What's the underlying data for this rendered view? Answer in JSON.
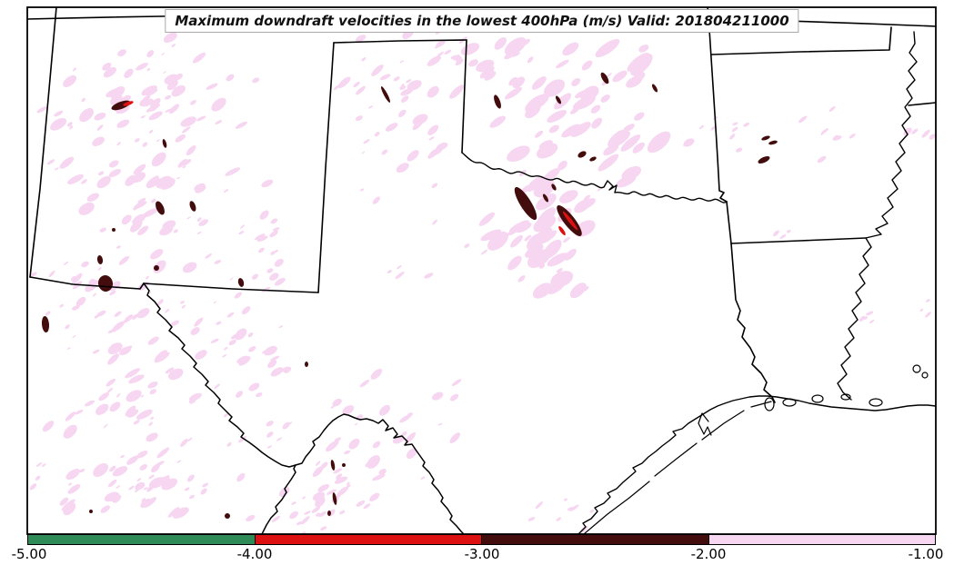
{
  "title": {
    "text": "Maximum downdraft velocities in the lowest 400hPa (m/s) Valid: 201804211000"
  },
  "chart_data": {
    "type": "heatmap",
    "title": "Maximum downdraft velocities in the lowest 400hPa (m/s)",
    "valid": "201804211000",
    "units": "m/s",
    "value_range": [
      -5.0,
      -1.0
    ],
    "colorbar": {
      "orientation": "horizontal",
      "ticks": [
        "-5.00",
        "-4.00",
        "-3.00",
        "-2.00",
        "-1.00"
      ],
      "segments": [
        {
          "from": -5.0,
          "to": -4.0,
          "color": "#2e8b57",
          "name": "green"
        },
        {
          "from": -4.0,
          "to": -3.0,
          "color": "#dd1111",
          "name": "red"
        },
        {
          "from": -3.0,
          "to": -2.0,
          "color": "#430d0d",
          "name": "maroon"
        },
        {
          "from": -2.0,
          "to": -1.0,
          "color": "#f6d6f1",
          "name": "pink"
        }
      ]
    },
    "notes": "Filled contour speckles over NM, TX panhandle, OK and the Red River valley; light pink = -2 to -1 m/s, dark maroon = -3 to -2 m/s, red = -4 to -3 m/s"
  },
  "map": {
    "visible_states": [
      "Colorado",
      "Kansas",
      "Missouri",
      "New Mexico",
      "Texas",
      "Oklahoma",
      "Arkansas",
      "Louisiana"
    ],
    "border_color": "#000000",
    "streak_angle": -35,
    "pink_clusters": [
      [
        160,
        200,
        120,
        130,
        85,
        2,
        10
      ],
      [
        180,
        95,
        110,
        65,
        38,
        2,
        9
      ],
      [
        120,
        330,
        95,
        55,
        30,
        2,
        9
      ],
      [
        440,
        115,
        85,
        85,
        30,
        2,
        9
      ],
      [
        640,
        135,
        105,
        105,
        55,
        3,
        16
      ],
      [
        800,
        150,
        55,
        38,
        10,
        2,
        7
      ],
      [
        610,
        255,
        95,
        75,
        45,
        3,
        14
      ],
      [
        150,
        430,
        120,
        105,
        55,
        2,
        10
      ],
      [
        280,
        395,
        75,
        85,
        28,
        2,
        8
      ],
      [
        150,
        540,
        130,
        48,
        45,
        2,
        10
      ],
      [
        400,
        480,
        140,
        85,
        30,
        2,
        8
      ],
      [
        380,
        530,
        45,
        55,
        25,
        2,
        9
      ],
      [
        345,
        558,
        85,
        32,
        18,
        2,
        8
      ],
      [
        905,
        140,
        42,
        38,
        8,
        2,
        6
      ],
      [
        285,
        255,
        60,
        90,
        20,
        2,
        7
      ],
      [
        520,
        60,
        85,
        50,
        24,
        3,
        11
      ],
      [
        1012,
        148,
        18,
        14,
        4,
        2,
        6
      ],
      [
        955,
        350,
        18,
        12,
        4,
        2,
        6
      ],
      [
        1016,
        342,
        14,
        12,
        3,
        2,
        5
      ],
      [
        865,
        257,
        14,
        10,
        3,
        2,
        5
      ],
      [
        450,
        210,
        70,
        110,
        16,
        2,
        8
      ],
      [
        605,
        565,
        55,
        20,
        8,
        2,
        6
      ]
    ],
    "maroon_spots": [
      [
        133,
        116,
        11,
        4,
        -20
      ],
      [
        181,
        158,
        2,
        5,
        -15
      ],
      [
        176,
        229,
        4,
        8,
        -25
      ],
      [
        212,
        227,
        3,
        6,
        -20
      ],
      [
        125,
        253,
        2,
        2,
        0
      ],
      [
        110,
        286,
        3,
        5,
        -10
      ],
      [
        116,
        312,
        8,
        9,
        -10
      ],
      [
        50,
        357,
        4,
        9,
        -5
      ],
      [
        172,
        295,
        3,
        3,
        -20
      ],
      [
        265,
        311,
        3,
        5,
        -15
      ],
      [
        337,
        401,
        2,
        3,
        0
      ],
      [
        250,
        568,
        3,
        3,
        0
      ],
      [
        100,
        563,
        2,
        2,
        0
      ],
      [
        424,
        104,
        2,
        10,
        -28
      ],
      [
        547,
        112,
        3,
        8,
        -20
      ],
      [
        578,
        224,
        6,
        21,
        -32
      ],
      [
        626,
        243,
        6,
        21,
        -38
      ],
      [
        640,
        170,
        5,
        3,
        -30
      ],
      [
        652,
        175,
        4,
        2,
        -25
      ],
      [
        609,
        206,
        2,
        4,
        -30
      ],
      [
        665,
        86,
        3,
        7,
        -30
      ],
      [
        614,
        110,
        2,
        5,
        -30
      ],
      [
        720,
        97,
        2,
        5,
        -30
      ],
      [
        840,
        176,
        7,
        3,
        -25
      ],
      [
        842,
        152,
        5,
        2,
        -20
      ],
      [
        850,
        157,
        5,
        2,
        -15
      ],
      [
        600,
        218,
        2,
        5,
        -30
      ],
      [
        366,
        512,
        2,
        6,
        -10
      ],
      [
        368,
        549,
        2,
        7,
        -10
      ],
      [
        362,
        565,
        2,
        3,
        0
      ],
      [
        378,
        512,
        2,
        2,
        0
      ]
    ],
    "red_spots": [
      [
        141,
        114,
        6,
        2,
        -20
      ],
      [
        627,
        243,
        2,
        13,
        -38
      ],
      [
        618,
        254,
        2,
        6,
        -35
      ]
    ]
  }
}
